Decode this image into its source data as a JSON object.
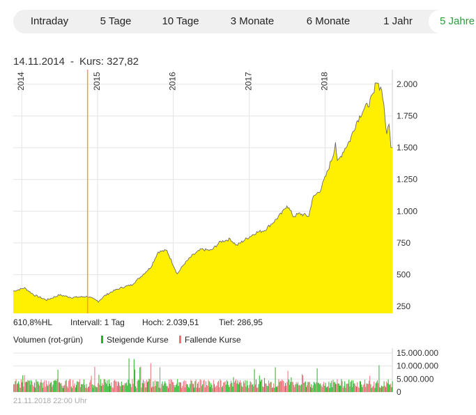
{
  "tabs": [
    {
      "label": "Intraday",
      "active": false
    },
    {
      "label": "5 Tage",
      "active": false
    },
    {
      "label": "10 Tage",
      "active": false
    },
    {
      "label": "3 Monate",
      "active": false
    },
    {
      "label": "6 Monate",
      "active": false
    },
    {
      "label": "1 Jahr",
      "active": false
    },
    {
      "label": "5 Jahre",
      "active": true
    }
  ],
  "header": {
    "date": "14.11.2014",
    "separator": "-",
    "price_label": "Kurs: 327,82"
  },
  "stats": {
    "performance": "610,8%HL",
    "interval": "Intervall: 1 Tag",
    "high": "Hoch:  2.039,51",
    "low": "Tief:   286,95"
  },
  "volume_legend": {
    "title": "Volumen (rot-grün)",
    "rising": "Steigende Kurse",
    "falling": "Fallende Kurse",
    "rising_color": "#22b422",
    "falling_color": "#f06e78"
  },
  "footer_timestamp": "21.11.2018 22:00 Uhr",
  "colors": {
    "area_fill": "#ffef00",
    "line": "#6a6a6a",
    "crosshair": "#f0a030",
    "grid": "#e4e4e4",
    "active_tab": "#2a9d3a"
  },
  "chart_data": [
    {
      "type": "area",
      "x_labels": [
        "2014",
        "2015",
        "2016",
        "2017",
        "2018"
      ],
      "y_ticks": [
        "250",
        "500",
        "750",
        "1.000",
        "1.250",
        "1.500",
        "1.750",
        "2.000"
      ],
      "y_tick_values": [
        250,
        500,
        750,
        1000,
        1250,
        1500,
        1750,
        2000
      ],
      "ylim": [
        200,
        2100
      ],
      "xlim": [
        "2013-11-21",
        "2018-11-21"
      ],
      "grid": true,
      "crosshair_date": "2014-11-14",
      "series": [
        {
          "points": [
            [
              "2013-11-21",
              370
            ],
            [
              "2014-01-15",
              395
            ],
            [
              "2014-03-01",
              340
            ],
            [
              "2014-05-01",
              300
            ],
            [
              "2014-07-01",
              340
            ],
            [
              "2014-09-01",
              320
            ],
            [
              "2014-11-14",
              328
            ],
            [
              "2015-01-05",
              290
            ],
            [
              "2015-02-01",
              330
            ],
            [
              "2015-03-15",
              370
            ],
            [
              "2015-05-01",
              400
            ],
            [
              "2015-06-15",
              420
            ],
            [
              "2015-08-01",
              490
            ],
            [
              "2015-09-15",
              560
            ],
            [
              "2015-10-20",
              680
            ],
            [
              "2015-12-01",
              690
            ],
            [
              "2016-01-20",
              505
            ],
            [
              "2016-02-20",
              580
            ],
            [
              "2016-04-01",
              650
            ],
            [
              "2016-05-15",
              700
            ],
            [
              "2016-07-01",
              690
            ],
            [
              "2016-08-15",
              760
            ],
            [
              "2016-10-01",
              780
            ],
            [
              "2016-11-01",
              730
            ],
            [
              "2016-12-15",
              780
            ],
            [
              "2017-02-01",
              830
            ],
            [
              "2017-03-15",
              850
            ],
            [
              "2017-05-01",
              920
            ],
            [
              "2017-06-10",
              990
            ],
            [
              "2017-07-01",
              1050
            ],
            [
              "2017-08-01",
              960
            ],
            [
              "2017-09-01",
              980
            ],
            [
              "2017-10-15",
              960
            ],
            [
              "2017-11-01",
              1100
            ],
            [
              "2017-12-10",
              1170
            ],
            [
              "2018-01-10",
              1300
            ],
            [
              "2018-02-10",
              1450
            ],
            [
              "2018-02-20",
              1550
            ],
            [
              "2018-03-01",
              1380
            ],
            [
              "2018-04-01",
              1480
            ],
            [
              "2018-05-01",
              1560
            ],
            [
              "2018-06-01",
              1700
            ],
            [
              "2018-07-01",
              1790
            ],
            [
              "2018-08-01",
              1850
            ],
            [
              "2018-08-25",
              1930
            ],
            [
              "2018-09-04",
              2040
            ],
            [
              "2018-09-20",
              1980
            ],
            [
              "2018-10-01",
              1960
            ],
            [
              "2018-10-15",
              1760
            ],
            [
              "2018-10-25",
              1600
            ],
            [
              "2018-11-05",
              1710
            ],
            [
              "2018-11-14",
              1520
            ],
            [
              "2018-11-21",
              1500
            ]
          ]
        }
      ]
    },
    {
      "type": "bar",
      "title": "Volumen (rot-grün)",
      "y_ticks": [
        "15.000.000",
        "10.000.000",
        "5.000.000",
        "0"
      ],
      "y_tick_values": [
        15000000,
        10000000,
        5000000,
        0
      ],
      "ylim": [
        0,
        16000000
      ],
      "series": [
        {
          "name": "Steigende Kurse",
          "color": "#22b422"
        },
        {
          "name": "Fallende Kurse",
          "color": "#f06e78"
        }
      ]
    }
  ]
}
